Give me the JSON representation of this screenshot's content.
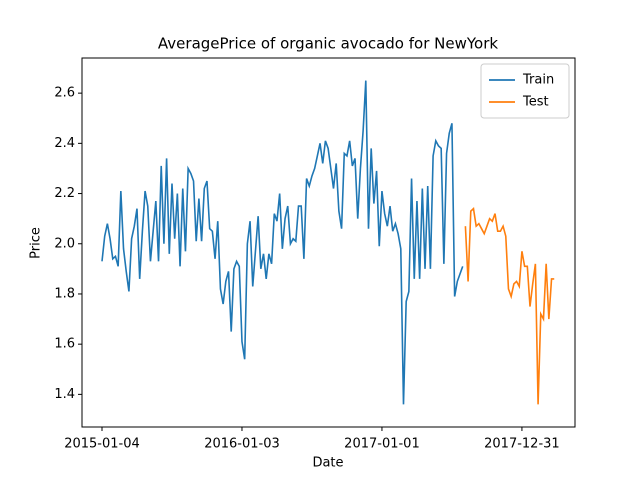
{
  "chart_data": {
    "type": "line",
    "title": "AveragePrice of organic avocado for NewYork",
    "x_label": "Date",
    "y_label": "Price",
    "xlim": [
      "2014-11-13",
      "2018-05-18"
    ],
    "xticks": [
      "2015-01-04",
      "2016-01-03",
      "2017-01-01",
      "2017-12-31"
    ],
    "ylim": [
      1.27,
      2.74
    ],
    "yticks": [
      {
        "value": 1.4,
        "label": "1.4"
      },
      {
        "value": 1.6,
        "label": "1.6"
      },
      {
        "value": 1.8,
        "label": "1.8"
      },
      {
        "value": 2.0,
        "label": "2.0"
      },
      {
        "value": 2.2,
        "label": "2.2"
      },
      {
        "value": 2.4,
        "label": "2.4"
      },
      {
        "value": 2.6,
        "label": "2.6"
      }
    ],
    "legend": "upper right",
    "series": [
      {
        "name": "Train",
        "color": "#1f77b4",
        "x": [
          "2015-01-04",
          "2015-01-11",
          "2015-01-18",
          "2015-01-25",
          "2015-02-01",
          "2015-02-08",
          "2015-02-15",
          "2015-02-22",
          "2015-03-01",
          "2015-03-08",
          "2015-03-15",
          "2015-03-22",
          "2015-03-29",
          "2015-04-05",
          "2015-04-12",
          "2015-04-19",
          "2015-04-26",
          "2015-05-03",
          "2015-05-10",
          "2015-05-17",
          "2015-05-24",
          "2015-05-31",
          "2015-06-07",
          "2015-06-14",
          "2015-06-21",
          "2015-06-28",
          "2015-07-05",
          "2015-07-12",
          "2015-07-19",
          "2015-07-26",
          "2015-08-02",
          "2015-08-09",
          "2015-08-16",
          "2015-08-23",
          "2015-08-30",
          "2015-09-06",
          "2015-09-13",
          "2015-09-20",
          "2015-09-27",
          "2015-10-04",
          "2015-10-11",
          "2015-10-18",
          "2015-10-25",
          "2015-11-01",
          "2015-11-08",
          "2015-11-15",
          "2015-11-22",
          "2015-11-29",
          "2015-12-06",
          "2015-12-13",
          "2015-12-20",
          "2015-12-27",
          "2016-01-03",
          "2016-01-10",
          "2016-01-17",
          "2016-01-24",
          "2016-01-31",
          "2016-02-07",
          "2016-02-14",
          "2016-02-21",
          "2016-02-28",
          "2016-03-06",
          "2016-03-13",
          "2016-03-20",
          "2016-03-27",
          "2016-04-03",
          "2016-04-10",
          "2016-04-17",
          "2016-04-24",
          "2016-05-01",
          "2016-05-08",
          "2016-05-15",
          "2016-05-22",
          "2016-05-29",
          "2016-06-05",
          "2016-06-12",
          "2016-06-19",
          "2016-06-26",
          "2016-07-03",
          "2016-07-10",
          "2016-07-17",
          "2016-07-24",
          "2016-07-31",
          "2016-08-07",
          "2016-08-14",
          "2016-08-21",
          "2016-08-28",
          "2016-09-04",
          "2016-09-11",
          "2016-09-18",
          "2016-09-25",
          "2016-10-02",
          "2016-10-09",
          "2016-10-16",
          "2016-10-23",
          "2016-10-30",
          "2016-11-06",
          "2016-11-13",
          "2016-11-20",
          "2016-11-27",
          "2016-12-04",
          "2016-12-11",
          "2016-12-18",
          "2016-12-25",
          "2017-01-01",
          "2017-01-08",
          "2017-01-15",
          "2017-01-22",
          "2017-01-29",
          "2017-02-05",
          "2017-02-12",
          "2017-02-19",
          "2017-02-26",
          "2017-03-05",
          "2017-03-12",
          "2017-03-19",
          "2017-03-26",
          "2017-04-02",
          "2017-04-09",
          "2017-04-16",
          "2017-04-23",
          "2017-04-30",
          "2017-05-07",
          "2017-05-14",
          "2017-05-21",
          "2017-05-28",
          "2017-06-04",
          "2017-06-11",
          "2017-06-18",
          "2017-06-25",
          "2017-07-02",
          "2017-07-09",
          "2017-07-16",
          "2017-07-23",
          "2017-07-30"
        ],
        "values": [
          1.93,
          2.03,
          2.08,
          2.02,
          1.94,
          1.95,
          1.91,
          2.21,
          1.98,
          1.89,
          1.81,
          2.02,
          2.07,
          2.14,
          1.86,
          2.05,
          2.21,
          2.15,
          1.93,
          2.05,
          2.17,
          1.93,
          2.31,
          2.0,
          2.34,
          1.96,
          2.24,
          2.02,
          2.2,
          1.91,
          2.22,
          1.97,
          2.3,
          2.28,
          2.25,
          2.01,
          2.18,
          2.01,
          2.22,
          2.25,
          2.06,
          2.05,
          1.94,
          2.09,
          1.82,
          1.76,
          1.85,
          1.89,
          1.65,
          1.9,
          1.93,
          1.91,
          1.61,
          1.54,
          2.0,
          2.09,
          1.83,
          1.97,
          2.11,
          1.9,
          1.96,
          1.86,
          1.96,
          1.92,
          2.12,
          2.09,
          2.2,
          1.98,
          2.1,
          2.15,
          2.0,
          2.02,
          2.01,
          2.15,
          2.15,
          1.94,
          2.26,
          2.23,
          2.27,
          2.3,
          2.35,
          2.4,
          2.32,
          2.41,
          2.38,
          2.3,
          2.22,
          2.32,
          2.13,
          2.06,
          2.36,
          2.35,
          2.41,
          2.31,
          2.34,
          2.1,
          2.3,
          2.45,
          2.65,
          2.06,
          2.38,
          2.16,
          2.29,
          1.99,
          2.21,
          2.12,
          2.07,
          2.15,
          2.05,
          2.08,
          2.04,
          1.98,
          1.36,
          1.77,
          1.81,
          2.26,
          1.86,
          2.17,
          1.86,
          2.22,
          1.9,
          2.23,
          1.9,
          2.35,
          2.41,
          2.39,
          2.38,
          1.92,
          2.36,
          2.44,
          2.48,
          1.79,
          1.85,
          1.88,
          1.91
        ]
      },
      {
        "name": "Test",
        "color": "#ff7f0e",
        "x": [
          "2017-08-06",
          "2017-08-13",
          "2017-08-20",
          "2017-08-27",
          "2017-09-03",
          "2017-09-10",
          "2017-09-17",
          "2017-09-24",
          "2017-10-01",
          "2017-10-08",
          "2017-10-15",
          "2017-10-22",
          "2017-10-29",
          "2017-11-05",
          "2017-11-12",
          "2017-11-19",
          "2017-11-26",
          "2017-12-03",
          "2017-12-10",
          "2017-12-17",
          "2017-12-24",
          "2017-12-31",
          "2018-01-07",
          "2018-01-14",
          "2018-01-21",
          "2018-01-28",
          "2018-02-04",
          "2018-02-11",
          "2018-02-18",
          "2018-02-25",
          "2018-03-04",
          "2018-03-11",
          "2018-03-18",
          "2018-03-25"
        ],
        "values": [
          2.07,
          1.85,
          2.13,
          2.14,
          2.07,
          2.08,
          2.06,
          2.04,
          2.07,
          2.1,
          2.09,
          2.12,
          2.05,
          2.05,
          2.07,
          2.03,
          1.82,
          1.79,
          1.84,
          1.85,
          1.83,
          1.97,
          1.91,
          1.91,
          1.75,
          1.84,
          1.92,
          1.36,
          1.72,
          1.7,
          1.92,
          1.7,
          1.86,
          1.86
        ]
      }
    ]
  }
}
